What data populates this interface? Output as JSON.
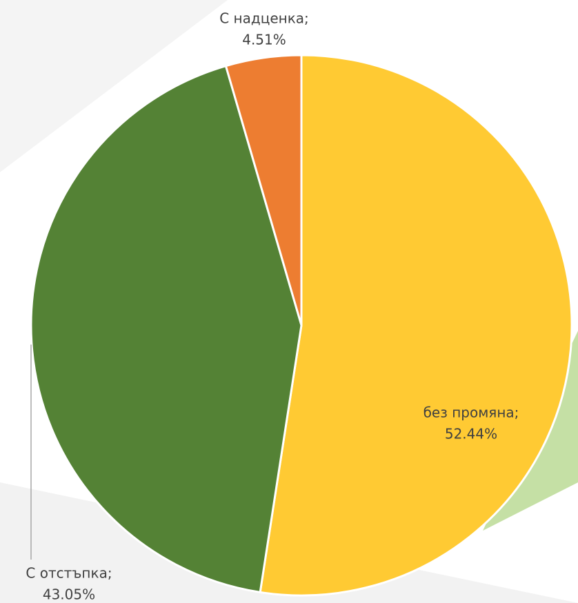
{
  "chart_data": {
    "type": "pie",
    "categories": [
      "без промяна;",
      "С отстъпка;",
      "С надценка;"
    ],
    "values": [
      52.44,
      43.05,
      4.51
    ],
    "value_labels": [
      "52.44%",
      "43.05%",
      "4.51%"
    ],
    "colors": [
      "#FFCA33",
      "#548235",
      "#ED7D31"
    ]
  }
}
